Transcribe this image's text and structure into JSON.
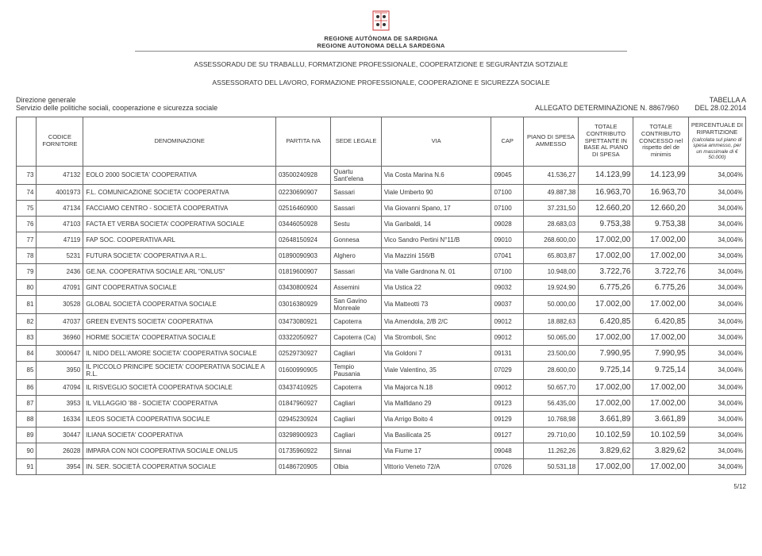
{
  "header": {
    "region1": "REGIONE AUTÒNOMA DE SARDIGNA",
    "region2": "REGIONE AUTONOMA DELLA SARDEGNA",
    "assessor1": "ASSESSORADU DE SU TRABALLU, FORMATZIONE PROFESSIONALE, COOPERATZIONE E SEGURÀNTZIA SOTZIALE",
    "assessor2": "ASSESSORATO DEL LAVORO, FORMAZIONE PROFESSIONALE, COOPERAZIONE E SICUREZZA SOCIALE"
  },
  "meta": {
    "direzione": "Direzione generale",
    "servizio": "Servizio delle politiche sociali, cooperazione e sicurezza sociale",
    "tabella": "TABELLA A",
    "allegato": "ALLEGATO   DETERMINAZIONE N. 8867/960",
    "del": "DEL  28.02.2014"
  },
  "columns": {
    "c0": "",
    "c1": "CODICE FORNITORE",
    "c2": "DENOMINAZIONE",
    "c3": "PARTITA IVA",
    "c4": "SEDE LEGALE",
    "c5": "VIA",
    "c6": "CAP",
    "c7": "PIANO DI SPESA AMMESSO",
    "c8": "TOTALE CONTRIBUTO SPETTANTE IN BASE AL PIANO DI SPESA",
    "c9": "TOTALE CONTRIBUTO CONCESSO nel rispetto del de minimis",
    "c10": "PERCENTUALE DI RIPARTIZIONE",
    "c10_sub": "(calcolata sul piano di spesa ammesso, per un massimale di € 50.000)"
  },
  "rows": [
    {
      "i": "73",
      "code": "47132",
      "denom": "EOLO 2000 SOCIETA' COOPERATIVA",
      "piva": "03500240928",
      "sede": "Quartu Sant'elena",
      "via": "Via Costa Marina N.6",
      "cap": "09045",
      "piano": "41.536,27",
      "t1": "14.123,99",
      "t2": "14.123,99",
      "perc": "34,004%"
    },
    {
      "i": "74",
      "code": "4001973",
      "denom": "F.L. COMUNICAZIONE SOCIETA' COOPERATIVA",
      "piva": "02230690907",
      "sede": "Sassari",
      "via": "Viale Umberto 90",
      "cap": "07100",
      "piano": "49.887,38",
      "t1": "16.963,70",
      "t2": "16.963,70",
      "perc": "34,004%"
    },
    {
      "i": "75",
      "code": "47134",
      "denom": "FACCIAMO CENTRO - SOCIETÀ COOPERATIVA",
      "piva": "02516460900",
      "sede": "Sassari",
      "via": "Via Giovanni Spano, 17",
      "cap": "07100",
      "piano": "37.231,50",
      "t1": "12.660,20",
      "t2": "12.660,20",
      "perc": "34,004%"
    },
    {
      "i": "76",
      "code": "47103",
      "denom": "FACTA ET VERBA SOCIETA' COOPERATIVA SOCIALE",
      "piva": "03446050928",
      "sede": "Sestu",
      "via": "Via Garibaldi, 14",
      "cap": "09028",
      "piano": "28.683,03",
      "t1": "9.753,38",
      "t2": "9.753,38",
      "perc": "34,004%"
    },
    {
      "i": "77",
      "code": "47119",
      "denom": "FAP SOC. COOPERATIVA ARL",
      "piva": "02648150924",
      "sede": "Gonnesa",
      "via": "Vico Sandro Pertini N°11/B",
      "cap": "09010",
      "piano": "268.600,00",
      "t1": "17.002,00",
      "t2": "17.002,00",
      "perc": "34,004%"
    },
    {
      "i": "78",
      "code": "5231",
      "denom": "FUTURA SOCIETA' COOPERATIVA A R.L.",
      "piva": "01890090903",
      "sede": "Alghero",
      "via": "Via Mazzini 156/B",
      "cap": "07041",
      "piano": "65.803,87",
      "t1": "17.002,00",
      "t2": "17.002,00",
      "perc": "34,004%"
    },
    {
      "i": "79",
      "code": "2436",
      "denom": "GE.NA. COOPERATIVA SOCIALE ARL \"ONLUS\"",
      "piva": "01819600907",
      "sede": "Sassari",
      "via": "Via Valle Gardnona N. 01",
      "cap": "07100",
      "piano": "10.948,00",
      "t1": "3.722,76",
      "t2": "3.722,76",
      "perc": "34,004%"
    },
    {
      "i": "80",
      "code": "47091",
      "denom": "GINT COOPERATIVA SOCIALE",
      "piva": "03430800924",
      "sede": "Assemini",
      "via": "Via Ustica 22",
      "cap": "09032",
      "piano": "19.924,90",
      "t1": "6.775,26",
      "t2": "6.775,26",
      "perc": "34,004%"
    },
    {
      "i": "81",
      "code": "30528",
      "denom": "GLOBAL SOCIETÀ COOPERATIVA SOCIALE",
      "piva": "03016380929",
      "sede": "San Gavino Monreale",
      "via": "Via Matteotti 73",
      "cap": "09037",
      "piano": "50.000,00",
      "t1": "17.002,00",
      "t2": "17.002,00",
      "perc": "34,004%"
    },
    {
      "i": "82",
      "code": "47037",
      "denom": "GREEN EVENTS SOCIETA' COOPERATIVA",
      "piva": "03473080921",
      "sede": "Capoterra",
      "via": "Via Amendola, 2/B 2/C",
      "cap": "09012",
      "piano": "18.882,63",
      "t1": "6.420,85",
      "t2": "6.420,85",
      "perc": "34,004%"
    },
    {
      "i": "83",
      "code": "36960",
      "denom": "HORME SOCIETA' COOPERATIVA SOCIALE",
      "piva": "03322050927",
      "sede": "Capoterra (Ca)",
      "via": "Via Stromboli, Snc",
      "cap": "09012",
      "piano": "50.065,00",
      "t1": "17.002,00",
      "t2": "17.002,00",
      "perc": "34,004%"
    },
    {
      "i": "84",
      "code": "3000647",
      "denom": "IL NIDO DELL'AMORE SOCIETA' COOPERATIVA SOCIALE",
      "piva": "02529730927",
      "sede": "Cagliari",
      "via": "Via Goldoni 7",
      "cap": "09131",
      "piano": "23.500,00",
      "t1": "7.990,95",
      "t2": "7.990,95",
      "perc": "34,004%"
    },
    {
      "i": "85",
      "code": "3950",
      "denom": "IL PICCOLO PRINCIPE SOCIETA' COOPERATIVA SOCIALE A R.L.",
      "piva": "01600990905",
      "sede": "Tempio Pausania",
      "via": "Viale Valentino, 35",
      "cap": "07029",
      "piano": "28.600,00",
      "t1": "9.725,14",
      "t2": "9.725,14",
      "perc": "34,004%"
    },
    {
      "i": "86",
      "code": "47094",
      "denom": "IL RISVEGLIO SOCIETÀ COOPERATIVA SOCIALE",
      "piva": "03437410925",
      "sede": "Capoterra",
      "via": "Via Majorca N.18",
      "cap": "09012",
      "piano": "50.657,70",
      "t1": "17.002,00",
      "t2": "17.002,00",
      "perc": "34,004%"
    },
    {
      "i": "87",
      "code": "3953",
      "denom": "IL VILLAGGIO '88 - SOCIETA' COOPERATIVA",
      "piva": "01847960927",
      "sede": "Cagliari",
      "via": "Via Malfidano 29",
      "cap": "09123",
      "piano": "56.435,00",
      "t1": "17.002,00",
      "t2": "17.002,00",
      "perc": "34,004%"
    },
    {
      "i": "88",
      "code": "16334",
      "denom": "ILEOS SOCIETÀ COOPERATIVA SOCIALE",
      "piva": "02945230924",
      "sede": "Cagliari",
      "via": "Via Arrigo Boito 4",
      "cap": "09129",
      "piano": "10.768,98",
      "t1": "3.661,89",
      "t2": "3.661,89",
      "perc": "34,004%"
    },
    {
      "i": "89",
      "code": "30447",
      "denom": "ILIANA SOCIETA' COOPERATIVA",
      "piva": "03298900923",
      "sede": "Cagliari",
      "via": "Via Basilicata 25",
      "cap": "09127",
      "piano": "29.710,00",
      "t1": "10.102,59",
      "t2": "10.102,59",
      "perc": "34,004%"
    },
    {
      "i": "90",
      "code": "26028",
      "denom": "IMPARA CON NOI COOPERATIVA SOCIALE ONLUS",
      "piva": "01735960922",
      "sede": "Sinnai",
      "via": "Via Fiume 17",
      "cap": "09048",
      "piano": "11.262,26",
      "t1": "3.829,62",
      "t2": "3.829,62",
      "perc": "34,004%"
    },
    {
      "i": "91",
      "code": "3954",
      "denom": "IN. SER. SOCIETÀ COOPERATIVA SOCIALE",
      "piva": "01486720905",
      "sede": "Olbia",
      "via": "Vittorio Veneto 72/A",
      "cap": "07026",
      "piano": "50.531,18",
      "t1": "17.002,00",
      "t2": "17.002,00",
      "perc": "34,004%"
    }
  ],
  "footer": {
    "page": "5/12"
  }
}
